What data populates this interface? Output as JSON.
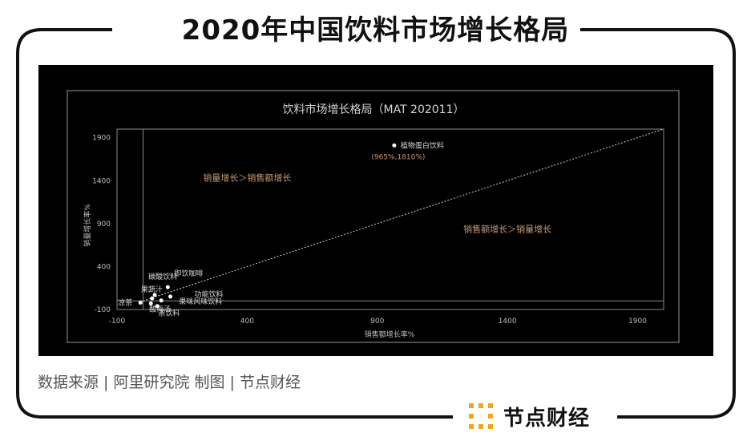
{
  "page": {
    "title": "2020年中国饮料市场增长格局",
    "source": "数据来源 | 阿里研究院    制图 | 节点财经",
    "brand_name": "节点财经",
    "colors": {
      "panel": "#000000",
      "frame": "#111111",
      "accent": "#f2a516",
      "label": "#c89a73",
      "text_light": "#d6d6d6"
    }
  },
  "chart_data": {
    "type": "scatter",
    "title": "饮料市场增长格局（MAT 202011）",
    "xlabel": "销售额增长率%",
    "ylabel": "销量增长率%",
    "xlim": [
      -100,
      2000
    ],
    "ylim": [
      -100,
      2000
    ],
    "xticks": [
      -100,
      400,
      900,
      1400,
      1900
    ],
    "yticks": [
      -100,
      400,
      900,
      1400,
      1900
    ],
    "ref_line": "y = x",
    "region_labels": [
      {
        "text": "销量增长＞销售额增长",
        "x": 400,
        "y": 1400
      },
      {
        "text": "销售额增长＞销量增长",
        "x": 1400,
        "y": 800
      }
    ],
    "points": [
      {
        "name": "植物蛋白饮料",
        "x": 965,
        "y": 1810,
        "annotation": "(965%,1810%)"
      },
      {
        "name": "即饮咖啡",
        "x": 95,
        "y": 160
      },
      {
        "name": "碳酸饮料",
        "x": 45,
        "y": 70
      },
      {
        "name": "果蔬汁",
        "x": 35,
        "y": 30
      },
      {
        "name": "果味风味饮料",
        "x": 70,
        "y": 5
      },
      {
        "name": "功能饮料",
        "x": 105,
        "y": 50
      },
      {
        "name": "凉茶",
        "x": -10,
        "y": -20
      },
      {
        "name": "酸梅汤",
        "x": 30,
        "y": -30
      },
      {
        "name": "茶饮料",
        "x": 55,
        "y": -60
      }
    ]
  }
}
